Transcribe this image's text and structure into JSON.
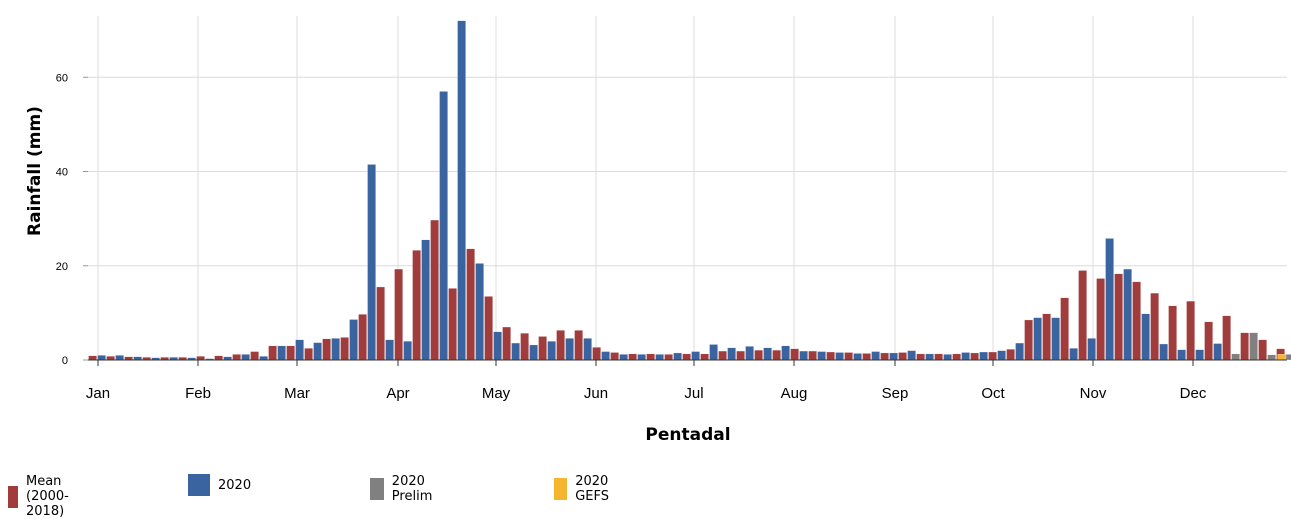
{
  "chart_data": {
    "type": "bar",
    "xlabel": "Pentadal",
    "ylabel": "Rainfall (mm)",
    "ylim": [
      0,
      73
    ],
    "yticks": [
      0,
      20,
      40,
      60
    ],
    "month_labels": [
      "Jan",
      "Feb",
      "Mar",
      "Apr",
      "May",
      "Jun",
      "Jul",
      "Aug",
      "Sep",
      "Oct",
      "Nov",
      "Dec"
    ],
    "grid": true,
    "legend_position": "bottom-left",
    "series": [
      {
        "name": "Mean (2000-2018)",
        "color": "#a03c3c",
        "values": [
          0.9,
          0.8,
          0.7,
          0.6,
          0.6,
          0.6,
          0.8,
          0.9,
          1.2,
          1.8,
          3.0,
          3.0,
          2.5,
          4.5,
          4.8,
          9.7,
          15.5,
          19.3,
          23.3,
          29.7,
          15.2,
          23.6,
          13.5,
          7.0,
          5.7,
          5.0,
          6.3,
          6.3,
          2.7,
          1.6,
          1.3,
          1.3,
          1.2,
          1.3,
          1.3,
          1.9,
          1.9,
          2.1,
          2.1,
          2.4,
          1.9,
          1.7,
          1.6,
          1.4,
          1.5,
          1.6,
          1.3,
          1.3,
          1.3,
          1.5,
          1.7,
          2.3,
          8.5,
          9.8,
          13.2,
          19.0,
          17.3,
          18.3,
          16.6,
          14.2,
          11.5,
          12.5,
          8.1,
          9.4,
          5.8,
          4.3,
          2.4,
          2.3,
          2.3
        ]
      },
      {
        "name": "2020",
        "color": "#3a64a0",
        "values": [
          1.0,
          1.0,
          0.7,
          0.5,
          0.6,
          0.5,
          0.3,
          0.7,
          1.2,
          0.8,
          3.0,
          4.3,
          3.7,
          4.6,
          8.6,
          41.5,
          4.3,
          4.0,
          25.5,
          57.0,
          72.0,
          20.5,
          6.0,
          3.6,
          3.2,
          4.0,
          4.6,
          4.6,
          1.8,
          1.2,
          1.2,
          1.2,
          1.5,
          1.8,
          3.3,
          2.6,
          2.9,
          2.6,
          3.0,
          1.9,
          1.8,
          1.6,
          1.4,
          1.8,
          1.5,
          2.0,
          1.3,
          1.2,
          1.6,
          1.7,
          2.0,
          3.6,
          9.0,
          9.0,
          2.5,
          4.6,
          25.8,
          19.3,
          9.8,
          3.4,
          2.2,
          2.2,
          3.5
        ]
      },
      {
        "name": "2020 Prelim",
        "color": "#808080",
        "values": [
          1.3,
          5.8,
          1.1,
          1.2,
          1.3
        ]
      },
      {
        "name": "2020 GEFS",
        "color": "#f5b52e",
        "values": [
          1.2
        ]
      }
    ]
  }
}
